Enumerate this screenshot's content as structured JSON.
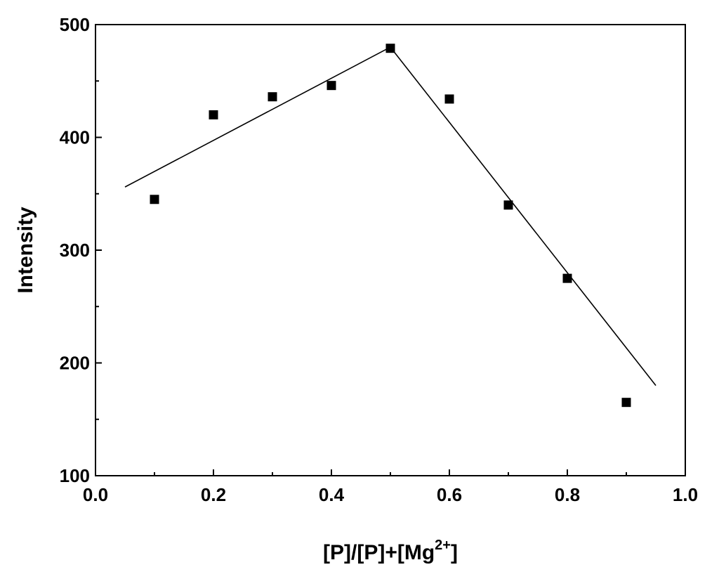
{
  "chart_data": {
    "type": "scatter",
    "xlabel_parts": {
      "main": "[P]/[P]+[Mg",
      "sup": "2+",
      "close": "]"
    },
    "ylabel": "Intensity",
    "xlim": [
      0.0,
      1.0
    ],
    "ylim": [
      100,
      500
    ],
    "x_ticks": [
      "0.0",
      "0.2",
      "0.4",
      "0.6",
      "0.8",
      "1.0"
    ],
    "y_ticks": [
      "100",
      "200",
      "300",
      "400",
      "500"
    ],
    "x_tick_values": [
      0.0,
      0.2,
      0.4,
      0.6,
      0.8,
      1.0
    ],
    "y_tick_values": [
      100,
      200,
      300,
      400,
      500
    ],
    "grid": false,
    "marker": "square",
    "color": "#000000",
    "points": [
      {
        "x": 0.1,
        "y": 345
      },
      {
        "x": 0.2,
        "y": 420
      },
      {
        "x": 0.3,
        "y": 436
      },
      {
        "x": 0.4,
        "y": 446
      },
      {
        "x": 0.5,
        "y": 479
      },
      {
        "x": 0.6,
        "y": 434
      },
      {
        "x": 0.7,
        "y": 340
      },
      {
        "x": 0.8,
        "y": 275
      },
      {
        "x": 0.9,
        "y": 165
      }
    ],
    "fit_lines": [
      {
        "x": [
          0.05,
          0.5
        ],
        "y": [
          356,
          480
        ]
      },
      {
        "x": [
          0.5,
          0.95
        ],
        "y": [
          480,
          180
        ]
      }
    ]
  }
}
